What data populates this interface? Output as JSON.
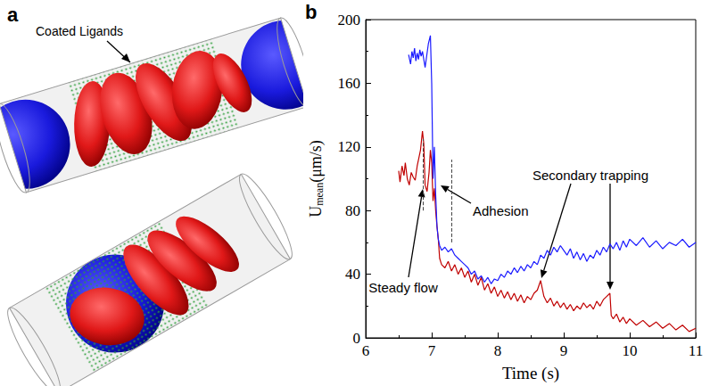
{
  "chart_data": {
    "type": "line",
    "panel_label": "b",
    "xlabel": "Time (s)",
    "ylabel": "Umean(μm/s)",
    "ylabel_subscript": "mean",
    "xlim": [
      6,
      11
    ],
    "xticks": [
      6,
      7,
      8,
      9,
      10,
      11
    ],
    "ylim": [
      0,
      200
    ],
    "yticks": [
      0,
      40,
      80,
      120,
      160,
      200
    ],
    "grid": false,
    "series": [
      {
        "color": "#c00000",
        "x": [
          6.5,
          6.52,
          6.55,
          6.58,
          6.6,
          6.63,
          6.66,
          6.69,
          6.72,
          6.75,
          6.78,
          6.8,
          6.83,
          6.86,
          6.88,
          6.9,
          6.93,
          6.96,
          6.98,
          7.0,
          7.02,
          7.04,
          7.06,
          7.08,
          7.1,
          7.12,
          7.15,
          7.2,
          7.25,
          7.3,
          7.35,
          7.4,
          7.45,
          7.5,
          7.55,
          7.6,
          7.65,
          7.7,
          7.75,
          7.8,
          7.85,
          7.9,
          7.95,
          8.0,
          8.05,
          8.1,
          8.15,
          8.2,
          8.25,
          8.3,
          8.35,
          8.4,
          8.45,
          8.5,
          8.55,
          8.6,
          8.65,
          8.7,
          8.75,
          8.8,
          8.85,
          8.9,
          8.95,
          9.0,
          9.05,
          9.1,
          9.15,
          9.2,
          9.25,
          9.3,
          9.35,
          9.4,
          9.45,
          9.5,
          9.55,
          9.6,
          9.65,
          9.7,
          9.72,
          9.75,
          9.8,
          9.85,
          9.9,
          9.95,
          10.0,
          10.1,
          10.2,
          10.3,
          10.4,
          10.5,
          10.6,
          10.7,
          10.8,
          10.9,
          11.0
        ],
        "values": [
          105,
          98,
          108,
          102,
          110,
          100,
          96,
          104,
          101,
          99,
          108,
          112,
          118,
          130,
          122,
          96,
          92,
          104,
          118,
          110,
          86,
          94,
          80,
          70,
          62,
          50,
          46,
          44,
          48,
          42,
          46,
          40,
          44,
          38,
          42,
          35,
          40,
          33,
          38,
          30,
          34,
          28,
          32,
          26,
          30,
          25,
          29,
          24,
          28,
          23,
          27,
          22,
          26,
          24,
          28,
          30,
          36,
          26,
          22,
          25,
          20,
          23,
          19,
          22,
          18,
          21,
          17,
          20,
          18,
          22,
          19,
          21,
          18,
          23,
          20,
          24,
          26,
          28,
          14,
          12,
          15,
          10,
          13,
          9,
          12,
          8,
          11,
          7,
          10,
          6,
          9,
          5,
          8,
          4,
          6
        ]
      },
      {
        "color": "#1a1aff",
        "x": [
          6.65,
          6.68,
          6.7,
          6.72,
          6.74,
          6.76,
          6.78,
          6.8,
          6.82,
          6.84,
          6.86,
          6.9,
          6.95,
          6.98,
          7.0,
          7.02,
          7.04,
          7.06,
          7.08,
          7.1,
          7.12,
          7.15,
          7.2,
          7.25,
          7.3,
          7.35,
          7.4,
          7.45,
          7.5,
          7.55,
          7.6,
          7.65,
          7.7,
          7.75,
          7.8,
          7.85,
          7.9,
          7.95,
          8.0,
          8.05,
          8.1,
          8.15,
          8.2,
          8.25,
          8.3,
          8.35,
          8.4,
          8.45,
          8.5,
          8.55,
          8.6,
          8.65,
          8.7,
          8.75,
          8.8,
          8.85,
          8.9,
          8.95,
          9.0,
          9.05,
          9.1,
          9.15,
          9.2,
          9.25,
          9.3,
          9.35,
          9.4,
          9.45,
          9.5,
          9.55,
          9.6,
          9.65,
          9.7,
          9.75,
          9.8,
          9.85,
          9.9,
          9.95,
          10.0,
          10.1,
          10.2,
          10.3,
          10.4,
          10.5,
          10.6,
          10.7,
          10.8,
          10.9,
          11.0
        ],
        "values": [
          178,
          172,
          180,
          176,
          182,
          174,
          179,
          175,
          181,
          177,
          180,
          170,
          185,
          190,
          160,
          100,
          120,
          90,
          70,
          62,
          58,
          55,
          57,
          54,
          56,
          52,
          50,
          48,
          46,
          44,
          40,
          42,
          37,
          39,
          35,
          38,
          34,
          37,
          36,
          40,
          38,
          42,
          40,
          44,
          41,
          45,
          42,
          46,
          44,
          48,
          46,
          52,
          50,
          55,
          52,
          57,
          54,
          58,
          55,
          52,
          56,
          50,
          54,
          49,
          53,
          48,
          52,
          50,
          55,
          52,
          57,
          54,
          59,
          56,
          60,
          55,
          61,
          57,
          62,
          58,
          63,
          57,
          61,
          56,
          60,
          58,
          62,
          57,
          60
        ]
      }
    ],
    "vlines": [
      {
        "x": 6.87,
        "y": [
          80,
          125
        ]
      },
      {
        "x": 7.3,
        "y": [
          60,
          112
        ]
      }
    ],
    "annotations": [
      "Steady flow",
      "Adhesion",
      "Secondary trapping"
    ]
  },
  "diagram": {
    "panel_label": "a",
    "label": "Coated Ligands"
  }
}
